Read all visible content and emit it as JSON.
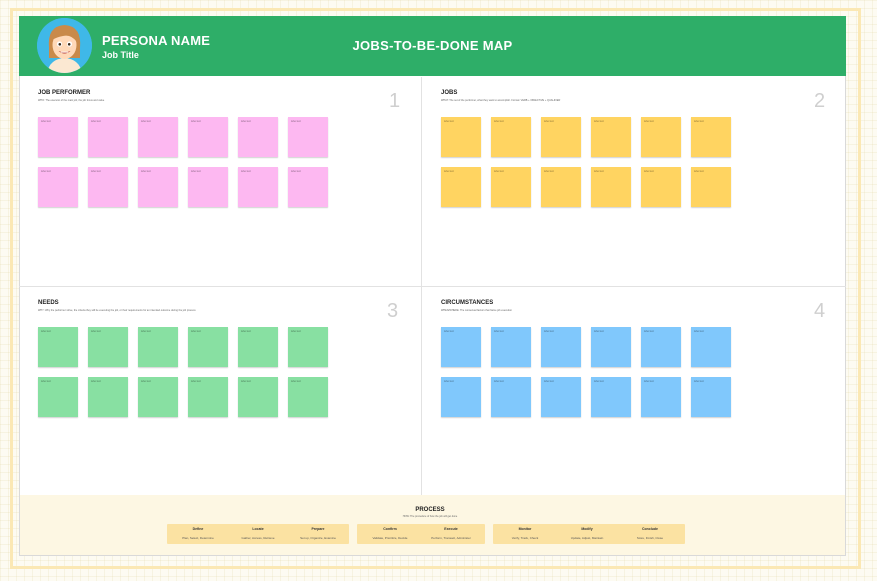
{
  "header": {
    "persona_name": "PERSONA NAME",
    "job_title": "Job Title",
    "board_title": "JOBS-TO-BE-DONE MAP",
    "color": "#2eae68"
  },
  "quadrants": [
    {
      "title": "JOB PERFORMER",
      "hint": "WHO: The executor of the main job, the job focus and value",
      "number": "1",
      "color": "#fdb8f1",
      "sticky_label": "label text",
      "sticky_count": 12
    },
    {
      "title": "JOBS",
      "hint": "WHAT: The set of the performer, what they want to accomplish. Format: VERB + OBJECTIVE + QUALIFIER",
      "number": "2",
      "color": "#ffd461",
      "sticky_label": "label text",
      "sticky_count": 12
    },
    {
      "title": "NEEDS",
      "hint": "WHY: Why the performer strive, the criteria they will be executing the job, or their requirements for an intended outcome during the job process",
      "number": "3",
      "color": "#88e0a2",
      "sticky_label": "label text",
      "sticky_count": 12
    },
    {
      "title": "CIRCUMSTANCES",
      "hint": "WHEN/WHERE: The contextual factors that frame job execution",
      "number": "4",
      "color": "#80c8fc",
      "sticky_label": "label text",
      "sticky_count": 12
    }
  ],
  "process": {
    "title": "PROCESS",
    "hint": "HOW: The procedure of how the job will get done",
    "color": "#fbe2a2",
    "groups": [
      {
        "steps": [
          {
            "name": "Define",
            "verbs": "Plan, Select, Determine"
          },
          {
            "name": "Locate",
            "verbs": "Gather, Access, Retrieve"
          },
          {
            "name": "Prepare",
            "verbs": "Set up, Organize, Examine"
          }
        ]
      },
      {
        "steps": [
          {
            "name": "Confirm",
            "verbs": "Validate, Prioritize, Decide"
          },
          {
            "name": "Execute",
            "verbs": "Perform, Transact, Administer"
          }
        ]
      },
      {
        "steps": [
          {
            "name": "Monitor",
            "verbs": "Verify, Track, Check"
          },
          {
            "name": "Modify",
            "verbs": "Update, Adjust, Maintain"
          },
          {
            "name": "Conclude",
            "verbs": "Store, Finish, Close"
          }
        ]
      }
    ]
  }
}
